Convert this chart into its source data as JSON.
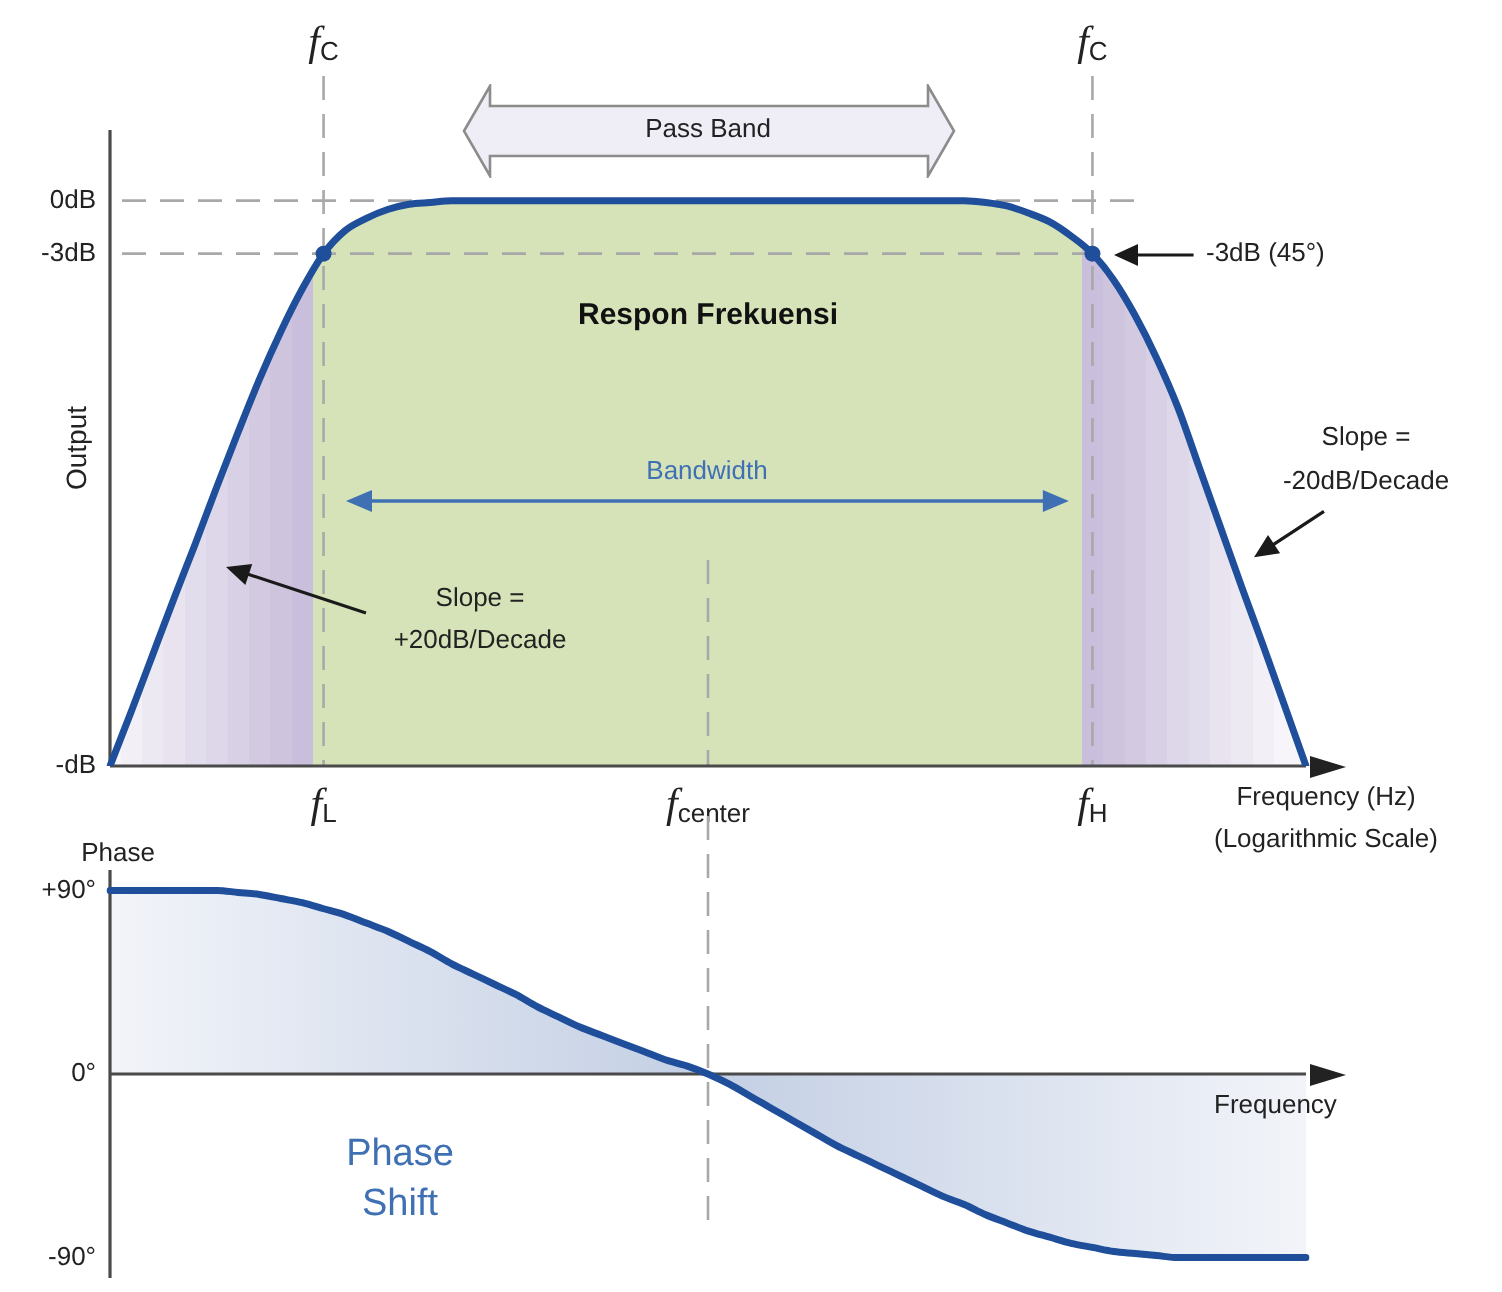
{
  "chart_data": [
    {
      "type": "line",
      "title": "Respon Frekuensi",
      "xlabel": "Frequency (Hz)\n(Logarithmic Scale)",
      "ylabel": "Output",
      "categories": [
        null,
        null,
        null,
        null,
        null,
        null,
        null,
        null,
        null,
        null,
        "f$_{L}$",
        null,
        null,
        null,
        null,
        null,
        null,
        null,
        null,
        null,
        null,
        null,
        null,
        null,
        null,
        null,
        null,
        null,
        "f$_{center}$",
        null,
        null,
        null,
        null,
        null,
        null,
        null,
        null,
        null,
        null,
        null,
        null,
        null,
        null,
        null,
        null,
        null,
        "f$_{H}$",
        null,
        null,
        null,
        null,
        null,
        null,
        null,
        null,
        null,
        null
      ],
      "ylim": [
        -32,
        4
      ],
      "yticks": [
        {
          "value": -32,
          "label": "-dB"
        },
        {
          "value": -3,
          "label": "-3dB"
        },
        {
          "value": 0,
          "label": "0dB"
        }
      ],
      "marker": "none",
      "series": [
        {
          "type": "area",
          "color": "#1f4e9b",
          "colors": [
            "#f7f5fa",
            "#f2eff6",
            "#ede9f3",
            "#e8e3ef",
            "#e2ddec",
            "#ddd7e9",
            "#d8d0e5",
            "#d3cae2",
            "#cec4de",
            "#c9bedb",
            "#d6e3b8",
            "#d6e3b8",
            "#d6e3b8",
            "#d6e3b8",
            "#d6e3b8",
            "#d6e3b8",
            "#d6e3b8",
            "#d6e3b8",
            "#d6e3b8",
            "#d6e3b8",
            "#d6e3b8",
            "#d6e3b8",
            "#d6e3b8",
            "#d6e3b8",
            "#d6e3b8",
            "#d6e3b8",
            "#d6e3b8",
            "#d6e3b8",
            "#d6e3b8",
            "#d6e3b8",
            "#d6e3b8",
            "#d6e3b8",
            "#d6e3b8",
            "#d6e3b8",
            "#d6e3b8",
            "#d6e3b8",
            "#d6e3b8",
            "#d6e3b8",
            "#d6e3b8",
            "#d6e3b8",
            "#d6e3b8",
            "#d6e3b8",
            "#d6e3b8",
            "#d6e3b8",
            "#d6e3b8",
            "#d6e3b8",
            "#c9bedb",
            "#cec4de",
            "#d3cae2",
            "#d8d0e5",
            "#ddd7e9",
            "#e2ddec",
            "#e8e3ef",
            "#ede9f3",
            "#f2eff6",
            "#f7f5fa",
            "#f7f5fa"
          ],
          "values": [
            -32,
            -28.9,
            -25.7,
            -22.5,
            -19.4,
            -16.2,
            -13.1,
            -10.1,
            -7.4,
            -5,
            -3,
            -1.7,
            -1,
            -0.5,
            -0.2,
            -0.1,
            0,
            0,
            0,
            0,
            0,
            0,
            0,
            0,
            0,
            0,
            0,
            0,
            0,
            0,
            0,
            0,
            0,
            0,
            0,
            0,
            0,
            0,
            0,
            0,
            0,
            -0.1,
            -0.3,
            -0.7,
            -1.2,
            -2,
            -3,
            -4.5,
            -6.5,
            -8.9,
            -11.7,
            -15.1,
            -18.5,
            -21.9,
            -25.2,
            -28.6,
            -32
          ]
        },
        {
          "type": "scatter",
          "x": [
            "f$_{L}$",
            "f$_{H}$"
          ],
          "values": [
            -3,
            -3
          ],
          "color": "#1f4e9b",
          "marker": "circle"
        }
      ],
      "ref_lines": [
        {
          "axis": "y",
          "value": 0,
          "line_style": "dashed",
          "color": "#a8a8a8"
        },
        {
          "axis": "y",
          "value": -3,
          "line_style": "dashed",
          "color": "#a8a8a8"
        },
        {
          "axis": "x",
          "value": "f$_{L}$",
          "label": "f$_{C}$",
          "line_style": "dashed",
          "color": "#a8a8a8"
        },
        {
          "axis": "x",
          "value": "f$_{H}$",
          "label": "f$_{C}$",
          "line_style": "dashed",
          "color": "#a8a8a8"
        },
        {
          "axis": "x",
          "value": "f$_{center}$",
          "line_style": "dashed",
          "color": "#a8a8a8"
        }
      ],
      "annotations": [
        "Pass Band",
        "Bandwidth",
        "-3dB (45°)",
        "Slope =\n+20dB/Decade",
        "Slope =\n-20dB/Decade"
      ]
    },
    {
      "type": "line",
      "xlabel": "Frequency",
      "ylabel": "Phase",
      "categories": [
        null,
        null,
        null,
        null,
        null,
        null,
        null,
        null,
        null,
        null,
        "f$_{L}$",
        null,
        null,
        null,
        null,
        null,
        null,
        null,
        null,
        null,
        null,
        null,
        null,
        null,
        null,
        null,
        null,
        null,
        "f$_{center}$",
        null,
        null,
        null,
        null,
        null,
        null,
        null,
        null,
        null,
        null,
        null,
        null,
        null,
        null,
        null,
        null,
        null,
        "f$_{H}$",
        null,
        null,
        null,
        null,
        null,
        null,
        null,
        null,
        null,
        null
      ],
      "tick_labels": "y",
      "ylim": [
        -100,
        100
      ],
      "yticks": [
        {
          "value": -90,
          "label": "-90°"
        },
        {
          "value": 0,
          "label": "0°"
        },
        {
          "value": 90,
          "label": "+90°"
        }
      ],
      "marker": "none",
      "series": [
        {
          "type": "area",
          "color": "#1f4e9b",
          "values": [
            90,
            90,
            90,
            90,
            90,
            90,
            89,
            88,
            86,
            84,
            81,
            78,
            74,
            70,
            65,
            60,
            54,
            49,
            44,
            39,
            33,
            28,
            23,
            19,
            15,
            11,
            7,
            4,
            0,
            -5,
            -11,
            -17,
            -23,
            -29,
            -35,
            -40,
            -45,
            -50,
            -55,
            -60,
            -64,
            -69,
            -73,
            -77,
            -80,
            -83,
            -85,
            -87,
            -88,
            -89,
            -90,
            -90,
            -90,
            -90,
            -90,
            -90,
            -90
          ]
        }
      ],
      "ref_lines": [
        {
          "axis": "x",
          "value": "f$_{center}$",
          "line_style": "dashed",
          "color": "#a8a8a8"
        }
      ],
      "annotations": [
        "Phase\nShift"
      ]
    }
  ]
}
